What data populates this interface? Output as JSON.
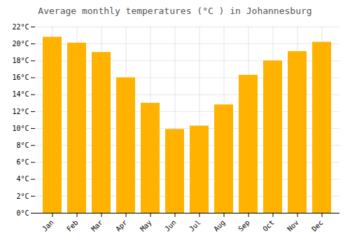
{
  "chart_data": {
    "type": "bar",
    "title": "Average monthly temperatures (°C ) in Johannesburg",
    "categories": [
      "Jan",
      "Feb",
      "Mar",
      "Apr",
      "May",
      "Jun",
      "Jul",
      "Aug",
      "Sep",
      "Oct",
      "Nov",
      "Dec"
    ],
    "values": [
      20.8,
      20.1,
      19.0,
      16.0,
      13.0,
      9.9,
      10.3,
      12.8,
      16.3,
      18.0,
      19.1,
      20.2
    ],
    "color": "#FFB300",
    "ylim": [
      0,
      22
    ],
    "yticks": [
      {
        "value": 0,
        "label": "0°C"
      },
      {
        "value": 2,
        "label": "2°C"
      },
      {
        "value": 4,
        "label": "4°C"
      },
      {
        "value": 6,
        "label": "6°C"
      },
      {
        "value": 8,
        "label": "8°C"
      },
      {
        "value": 10,
        "label": "10°C"
      },
      {
        "value": 12,
        "label": "12°C"
      },
      {
        "value": 14,
        "label": "14°C"
      },
      {
        "value": 16,
        "label": "16°C"
      },
      {
        "value": 18,
        "label": "18°C"
      },
      {
        "value": 20,
        "label": "20°C"
      },
      {
        "value": 22,
        "label": "22°C"
      }
    ],
    "grid": true
  }
}
